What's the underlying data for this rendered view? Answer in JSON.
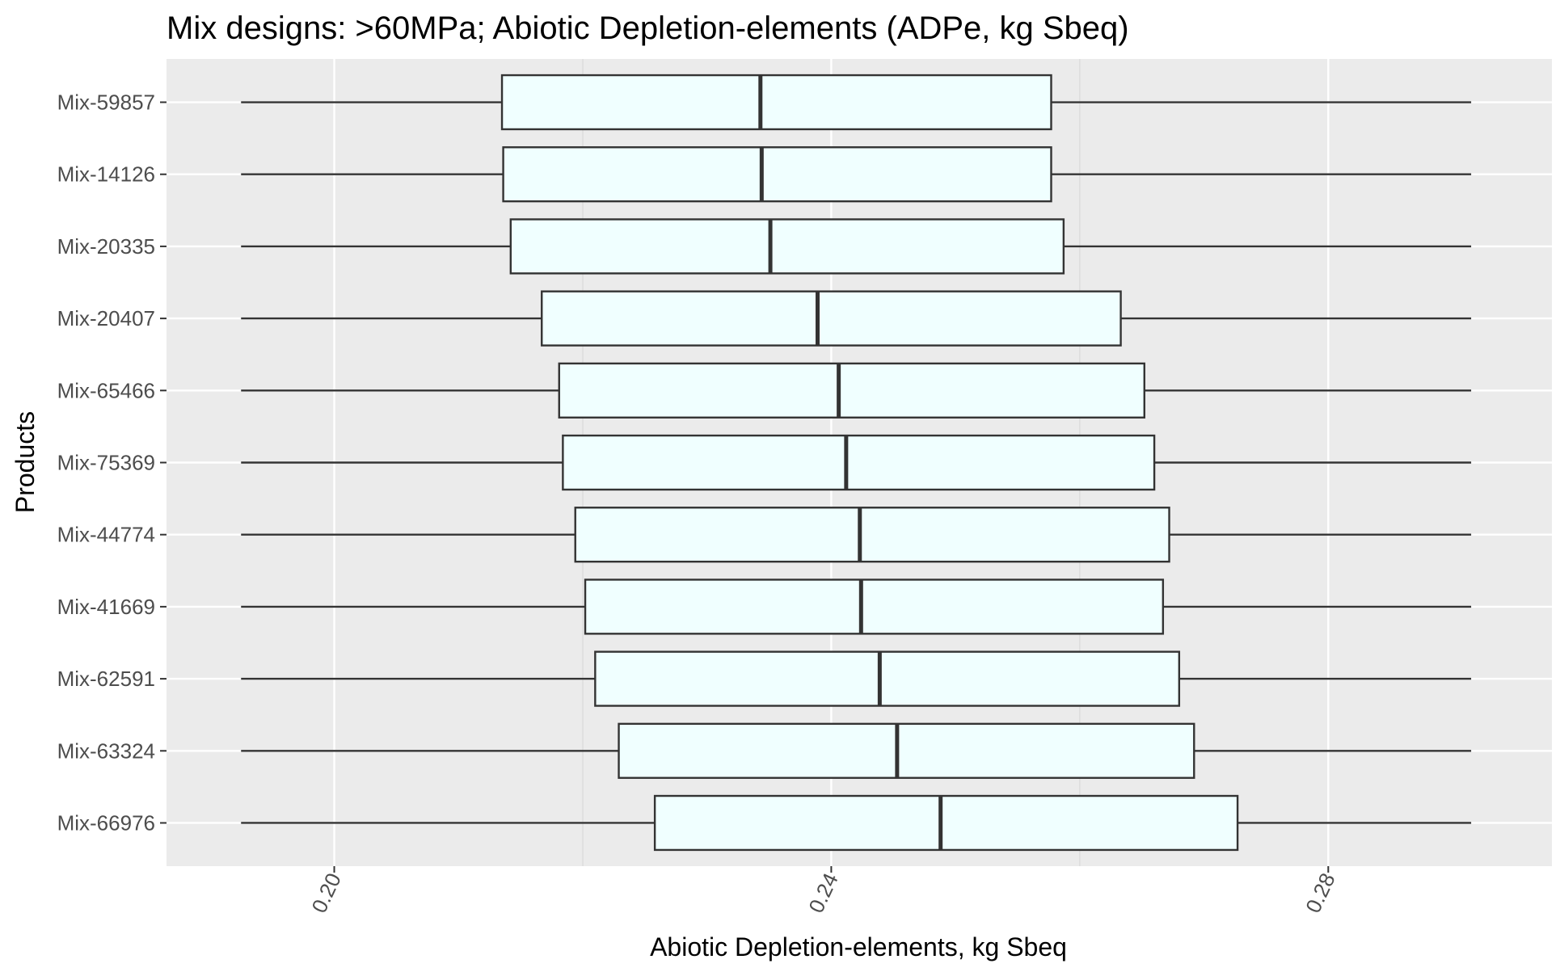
{
  "chart_data": {
    "type": "boxplot",
    "orientation": "horizontal",
    "title": "Mix designs: >60MPa; Abiotic Depletion-elements (ADPe, kg Sbeq)",
    "xlabel": "Abiotic Depletion-elements, kg Sbeq",
    "ylabel": "Products",
    "xlim": [
      0.1865,
      0.298
    ],
    "x_ticks": [
      0.2,
      0.24,
      0.28
    ],
    "x_tick_labels": [
      "0.20",
      "0.24",
      "0.28"
    ],
    "x_minor_ticks": [
      0.22,
      0.26,
      0.3
    ],
    "grid": true,
    "legend": "none",
    "categories": [
      "Mix-59857",
      "Mix-14126",
      "Mix-20335",
      "Mix-20407",
      "Mix-65466",
      "Mix-75369",
      "Mix-44774",
      "Mix-41669",
      "Mix-62591",
      "Mix-63324",
      "Mix-66976"
    ],
    "boxes": [
      {
        "label": "Mix-59857",
        "whisker_low": 0.1925,
        "q1": 0.2135,
        "median": 0.2343,
        "q3": 0.2577,
        "whisker_high": 0.2915
      },
      {
        "label": "Mix-14126",
        "whisker_low": 0.1925,
        "q1": 0.2136,
        "median": 0.2344,
        "q3": 0.2577,
        "whisker_high": 0.2915
      },
      {
        "label": "Mix-20335",
        "whisker_low": 0.1925,
        "q1": 0.2142,
        "median": 0.2351,
        "q3": 0.2587,
        "whisker_high": 0.2915
      },
      {
        "label": "Mix-20407",
        "whisker_low": 0.1925,
        "q1": 0.2167,
        "median": 0.2389,
        "q3": 0.2633,
        "whisker_high": 0.2915
      },
      {
        "label": "Mix-65466",
        "whisker_low": 0.1925,
        "q1": 0.2181,
        "median": 0.2406,
        "q3": 0.2652,
        "whisker_high": 0.2915
      },
      {
        "label": "Mix-75369",
        "whisker_low": 0.1925,
        "q1": 0.2184,
        "median": 0.2412,
        "q3": 0.266,
        "whisker_high": 0.2915
      },
      {
        "label": "Mix-44774",
        "whisker_low": 0.1925,
        "q1": 0.2194,
        "median": 0.2423,
        "q3": 0.2672,
        "whisker_high": 0.2915
      },
      {
        "label": "Mix-41669",
        "whisker_low": 0.1925,
        "q1": 0.2202,
        "median": 0.2424,
        "q3": 0.2667,
        "whisker_high": 0.2915
      },
      {
        "label": "Mix-62591",
        "whisker_low": 0.1925,
        "q1": 0.221,
        "median": 0.2439,
        "q3": 0.268,
        "whisker_high": 0.2915
      },
      {
        "label": "Mix-63324",
        "whisker_low": 0.1925,
        "q1": 0.2229,
        "median": 0.2453,
        "q3": 0.2692,
        "whisker_high": 0.2915
      },
      {
        "label": "Mix-66976",
        "whisker_low": 0.1925,
        "q1": 0.2258,
        "median": 0.2488,
        "q3": 0.2727,
        "whisker_high": 0.2915
      }
    ],
    "colors": {
      "box_fill": "#f0ffff",
      "box_stroke": "#333333",
      "panel_background": "#ebebeb",
      "grid_major": "#ffffff",
      "grid_minor": "#d9d9d9",
      "tick_mark": "#333333",
      "tick_label": "#4d4d4d"
    }
  }
}
